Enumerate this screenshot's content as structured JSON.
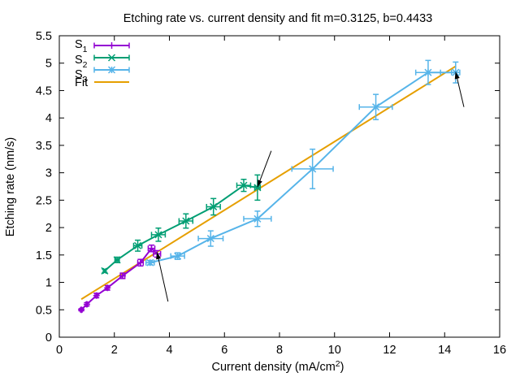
{
  "chart_data": {
    "type": "scatter",
    "title": "Etching rate vs. current density and fit m=0.3125, b=0.4433",
    "xlabel": "Current density (mA/cm",
    "xlabel_sup": "2",
    "xlabel_end": ")",
    "ylabel": "Etching rate (nm/s)",
    "xlim": [
      0,
      16
    ],
    "ylim": [
      0,
      5.5
    ],
    "xticks": [
      0,
      2,
      4,
      6,
      8,
      10,
      12,
      14,
      16
    ],
    "yticks": [
      0,
      0.5,
      1,
      1.5,
      2,
      2.5,
      3,
      3.5,
      4,
      4.5,
      5,
      5.5
    ],
    "xtick_labels": [
      "0",
      "2",
      "4",
      "6",
      "8",
      "10",
      "12",
      "14",
      "16"
    ],
    "ytick_labels": [
      "0",
      "0.5",
      "1",
      "1.5",
      "2",
      "2.5",
      "3",
      "3.5",
      "4",
      "4.5",
      "5",
      "5.5"
    ],
    "grid": false,
    "legend_position": "top-left",
    "series": [
      {
        "name": "S",
        "sub": "1",
        "color": "#9400d3",
        "marker": "plus",
        "x": [
          0.8,
          1.0,
          1.35,
          1.75,
          2.3,
          2.95,
          3.35,
          3.55
        ],
        "y": [
          0.5,
          0.6,
          0.76,
          0.9,
          1.12,
          1.36,
          1.62,
          1.52
        ],
        "xerr": [
          0.03,
          0.03,
          0.05,
          0.05,
          0.08,
          0.1,
          0.12,
          0.13
        ],
        "yerr": [
          0.02,
          0.03,
          0.04,
          0.04,
          0.05,
          0.06,
          0.06,
          0.06
        ]
      },
      {
        "name": "S",
        "sub": "2",
        "color": "#009e73",
        "marker": "cross",
        "x": [
          1.65,
          2.1,
          2.85,
          3.6,
          4.6,
          5.6,
          6.7,
          7.2
        ],
        "y": [
          1.21,
          1.41,
          1.67,
          1.87,
          2.12,
          2.38,
          2.77,
          2.73
        ],
        "xerr": [
          0.05,
          0.08,
          0.15,
          0.25,
          0.25,
          0.25,
          0.25,
          0.1
        ],
        "yerr": [
          0.03,
          0.05,
          0.1,
          0.12,
          0.13,
          0.15,
          0.11,
          0.23
        ]
      },
      {
        "name": "S",
        "sub": "3",
        "color": "#56b4e9",
        "marker": "star",
        "x": [
          3.3,
          4.3,
          5.5,
          7.2,
          9.2,
          11.5,
          13.4,
          14.4
        ],
        "y": [
          1.36,
          1.48,
          1.8,
          2.16,
          3.07,
          4.2,
          4.83,
          4.83
        ],
        "xerr": [
          0.15,
          0.25,
          0.45,
          0.5,
          0.75,
          0.6,
          0.45,
          0.15
        ],
        "yerr": [
          0.04,
          0.06,
          0.14,
          0.14,
          0.36,
          0.23,
          0.22,
          0.19
        ]
      }
    ],
    "fit": {
      "name": "Fit",
      "color": "#e69f00",
      "m": 0.3125,
      "b": 0.4433,
      "x_range": [
        0.8,
        14.4
      ]
    },
    "annotations": [
      {
        "label": "arrow",
        "from": [
          3.95,
          0.65
        ],
        "to": [
          3.55,
          1.55
        ]
      },
      {
        "label": "arrow",
        "from": [
          7.7,
          3.4
        ],
        "to": [
          7.2,
          2.74
        ]
      },
      {
        "label": "arrow",
        "from": [
          14.7,
          4.2
        ],
        "to": [
          14.4,
          4.84
        ]
      }
    ]
  }
}
